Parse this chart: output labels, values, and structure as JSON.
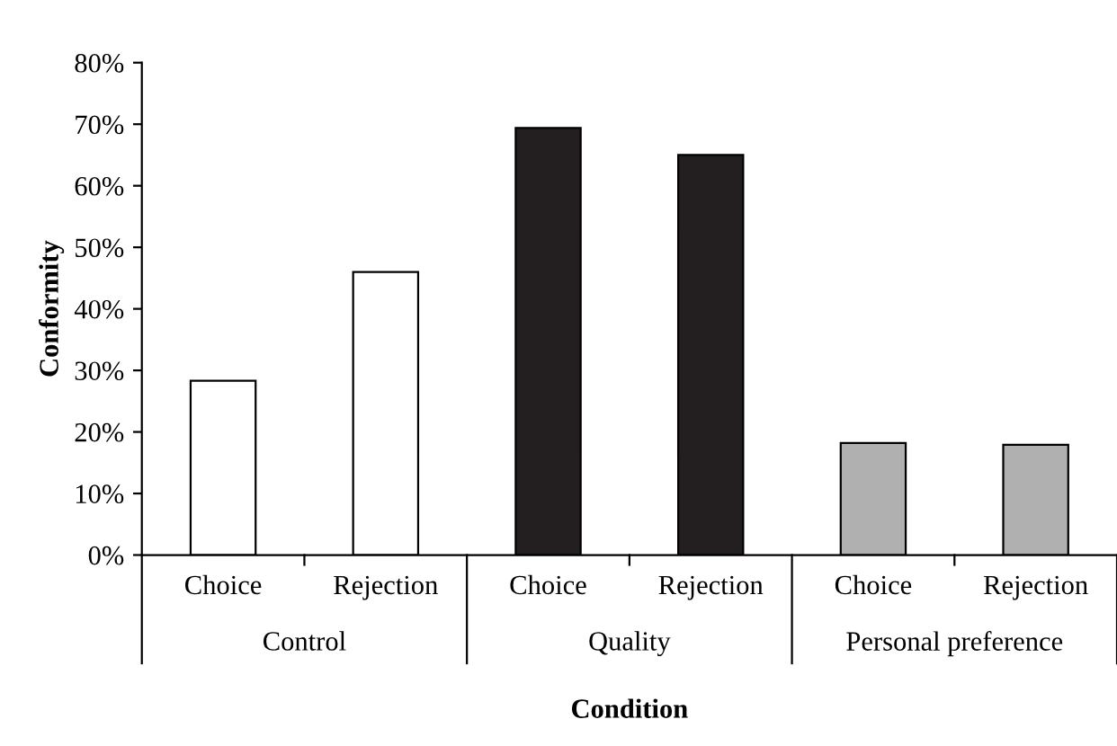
{
  "chart_data": {
    "type": "bar",
    "categories": [
      "Choice",
      "Rejection",
      "Choice",
      "Rejection",
      "Choice",
      "Rejection"
    ],
    "values": [
      28.3,
      46.0,
      69.4,
      65.0,
      18.2,
      17.9
    ],
    "colors": [
      "#ffffff",
      "#ffffff",
      "#231f20",
      "#231f20",
      "#b0b0b0",
      "#b0b0b0"
    ],
    "xlabel": "Condition",
    "ylabel": "Conformity",
    "annotations": [
      "Control",
      "Quality",
      "Personal preference"
    ],
    "ylim": [
      0,
      80
    ],
    "yticks": [
      {
        "value": 0,
        "label": "0%"
      },
      {
        "value": 10,
        "label": "10%"
      },
      {
        "value": 20,
        "label": "20%"
      },
      {
        "value": 30,
        "label": "30%"
      },
      {
        "value": 40,
        "label": "40%"
      },
      {
        "value": 50,
        "label": "50%"
      },
      {
        "value": 60,
        "label": "60%"
      },
      {
        "value": 70,
        "label": "70%"
      },
      {
        "value": 80,
        "label": "80%"
      }
    ],
    "grid": false,
    "legend": false
  }
}
